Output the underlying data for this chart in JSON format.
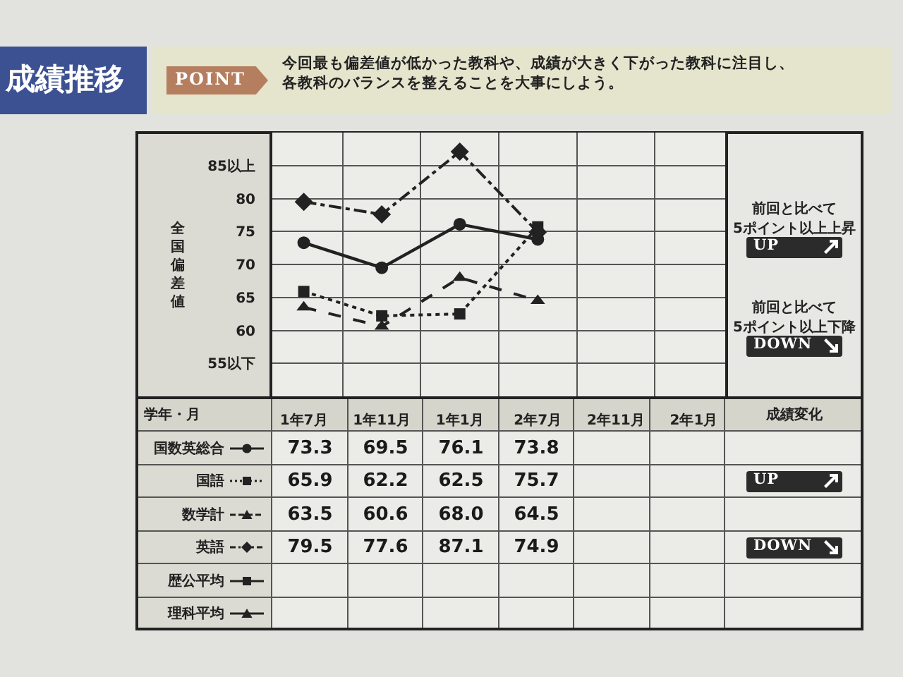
{
  "chart_data": {
    "type": "line",
    "title": "成績推移",
    "xlabel": "学年・月",
    "ylabel": "全国偏差値",
    "categories": [
      "1年7月",
      "1年11月",
      "1年1月",
      "2年7月",
      "2年11月",
      "2年1月"
    ],
    "series": [
      {
        "name": "国数英総合",
        "color": "#222222",
        "marker": "circle",
        "line_style": "solid",
        "values": [
          73.3,
          69.5,
          76.1,
          73.8,
          null,
          null
        ],
        "value_labels": [
          "73.3",
          "69.5",
          "76.1",
          "73.8",
          null,
          null
        ]
      },
      {
        "name": "国語",
        "color": "#222222",
        "marker": "square",
        "line_style": "dotted",
        "values": [
          65.9,
          62.2,
          62.5,
          75.7,
          null,
          null
        ],
        "value_labels": [
          "65.9",
          "62.2",
          "62.5",
          "75.7",
          null,
          null
        ]
      },
      {
        "name": "数学計",
        "color": "#222222",
        "marker": "triangle",
        "line_style": "dashed",
        "values": [
          63.5,
          60.6,
          68.0,
          64.5,
          null,
          null
        ],
        "value_labels": [
          "63.5",
          "60.6",
          "68.0",
          "64.5",
          null,
          null
        ]
      },
      {
        "name": "英語",
        "color": "#222222",
        "marker": "diamond",
        "line_style": "dashdot",
        "values": [
          79.5,
          77.6,
          87.1,
          74.9,
          null,
          null
        ],
        "value_labels": [
          "79.5",
          "77.6",
          "87.1",
          "74.9",
          null,
          null
        ]
      },
      {
        "name": "歴公平均",
        "color": "#222222",
        "marker": "square",
        "line_style": "solid",
        "values": [
          null,
          null,
          null,
          null,
          null,
          null
        ],
        "value_labels": [
          null,
          null,
          null,
          null,
          null,
          null
        ]
      },
      {
        "name": "理科平均",
        "color": "#222222",
        "marker": "triangle",
        "line_style": "solid",
        "values": [
          null,
          null,
          null,
          null,
          null,
          null
        ],
        "value_labels": [
          null,
          null,
          null,
          null,
          null,
          null
        ]
      }
    ],
    "ylim": [
      50,
      90
    ],
    "yticks": [
      {
        "value": 55,
        "label": "55以下"
      },
      60,
      65,
      70,
      75,
      80,
      {
        "value": 85,
        "label": "85以上"
      }
    ],
    "grid": true,
    "legend": "bottom left",
    "annotations": [
      "POINT",
      "今回最も偏差値が低かった教科や、成績が大きく下がった教科に注目し、各教科のバランスを整えることを大事にしよう。",
      "前回と比べて\n5ポイント以上上昇",
      "UP",
      "前回と比べて\n5ポイント以上下降",
      "DOWN",
      "成績変化",
      "UP",
      "DOWN"
    ]
  }
}
